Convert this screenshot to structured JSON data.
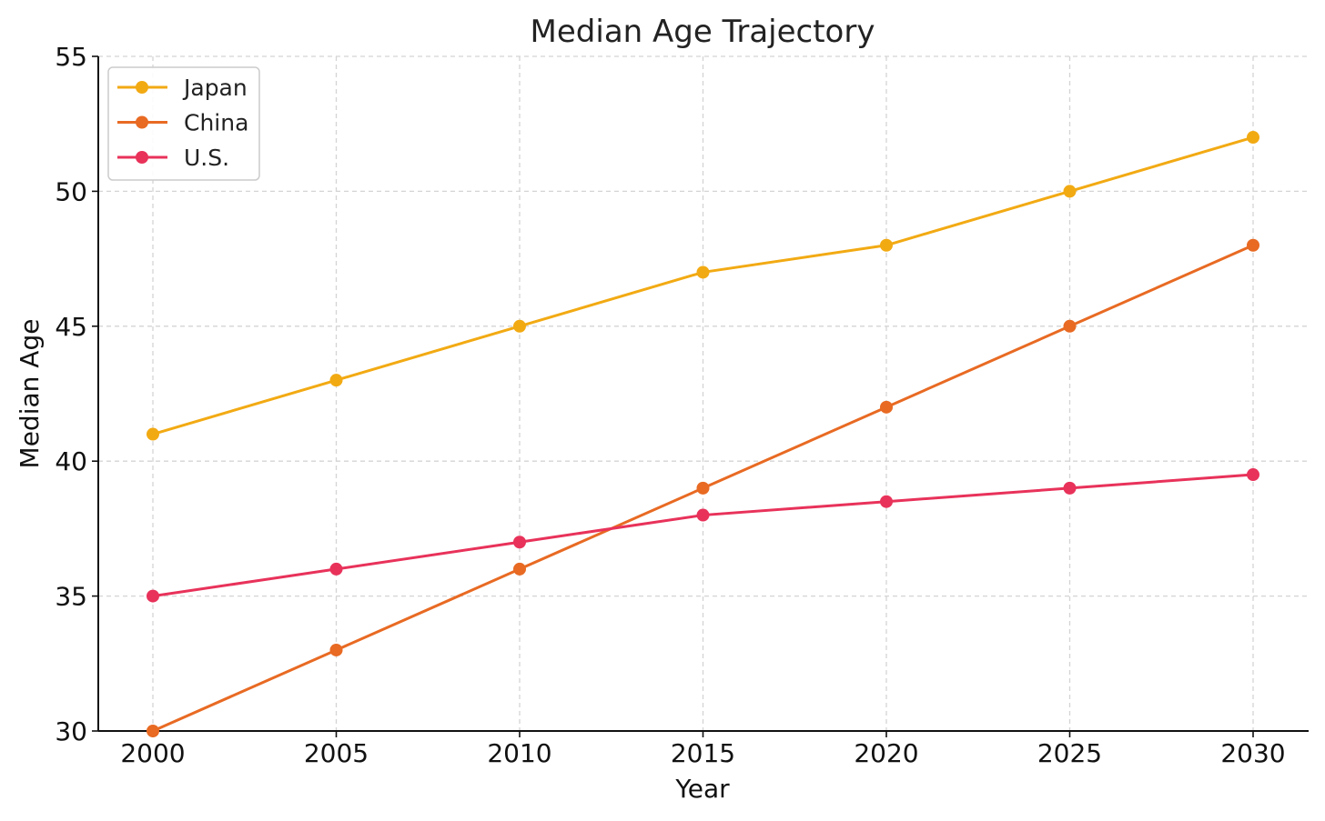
{
  "chart_data": {
    "type": "line",
    "title": "Median Age Trajectory",
    "xlabel": "Year",
    "ylabel": "Median Age",
    "x": [
      2000,
      2005,
      2010,
      2015,
      2020,
      2025,
      2030
    ],
    "xticks": [
      "2000",
      "2005",
      "2010",
      "2015",
      "2020",
      "2025",
      "2030"
    ],
    "yticks": [
      "30",
      "35",
      "40",
      "45",
      "50",
      "55"
    ],
    "ylim": [
      30,
      55
    ],
    "grid": true,
    "legend_position": "top-left",
    "series": [
      {
        "name": "Japan",
        "color": "#F2AA13",
        "values": [
          41,
          43,
          45,
          47,
          48,
          50,
          52
        ]
      },
      {
        "name": "China",
        "color": "#E86A23",
        "values": [
          30,
          33,
          36,
          39,
          42,
          45,
          48
        ]
      },
      {
        "name": "U.S.",
        "color": "#E8325A",
        "values": [
          35,
          36,
          37,
          38,
          38.5,
          39,
          39.5
        ]
      }
    ]
  }
}
